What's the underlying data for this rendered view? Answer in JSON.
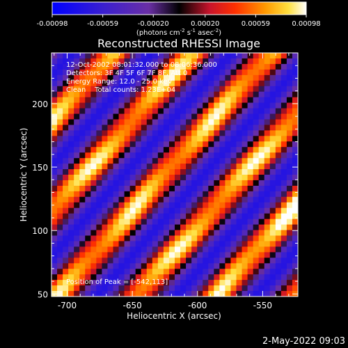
{
  "chart_data": {
    "type": "heatmap",
    "title": "Reconstructed RHESSI Image",
    "xlabel": "Heliocentric X (arcsec)",
    "ylabel": "Heliocentric Y (arcsec)",
    "xlim": [
      -712,
      -523
    ],
    "ylim": [
      48,
      240
    ],
    "xticks": [
      "-700",
      "-650",
      "-600",
      "-550"
    ],
    "xtick_values": [
      -700,
      -650,
      -600,
      -550
    ],
    "yticks": [
      "50",
      "100",
      "150",
      "200"
    ],
    "ytick_values": [
      50,
      100,
      150,
      200
    ],
    "colorbar": {
      "min": -0.00098,
      "max": 0.00098,
      "tick_labels": [
        "-0.00098",
        "-0.00059",
        "-0.00020",
        "0.00020",
        "0.00059",
        "0.00098"
      ],
      "tick_values": [
        -0.00098,
        -0.00059,
        -0.0002,
        0.0002,
        0.00059,
        0.00098
      ],
      "units_label": "(photons cm",
      "units_exp1": "-2",
      "units_mid": " s",
      "units_exp2": "-1",
      "units_mid2": " asec",
      "units_exp3": "-2",
      "units_end": ")"
    },
    "annotations": [
      "12-Oct-2002 08:01:32.000 to 08:06:36.000",
      "Detectors: 3F 4F 5F 6F 7F 8F, Att 0",
      "Energy Range: 12.0 - 25.0 keV",
      "Clean    Total counts: 1.23E+04"
    ],
    "peak_label": "Position of Peak = [-542,113]",
    "peak": [
      -542,
      113
    ],
    "colors": {
      "background": "#000000",
      "low": "#0000ff",
      "mid_low": "#6a2fa5",
      "mid": "#000000",
      "mid_high": "#ff3000",
      "high": "#ffffff"
    }
  },
  "footer_timestamp": "2-May-2022 09:03"
}
